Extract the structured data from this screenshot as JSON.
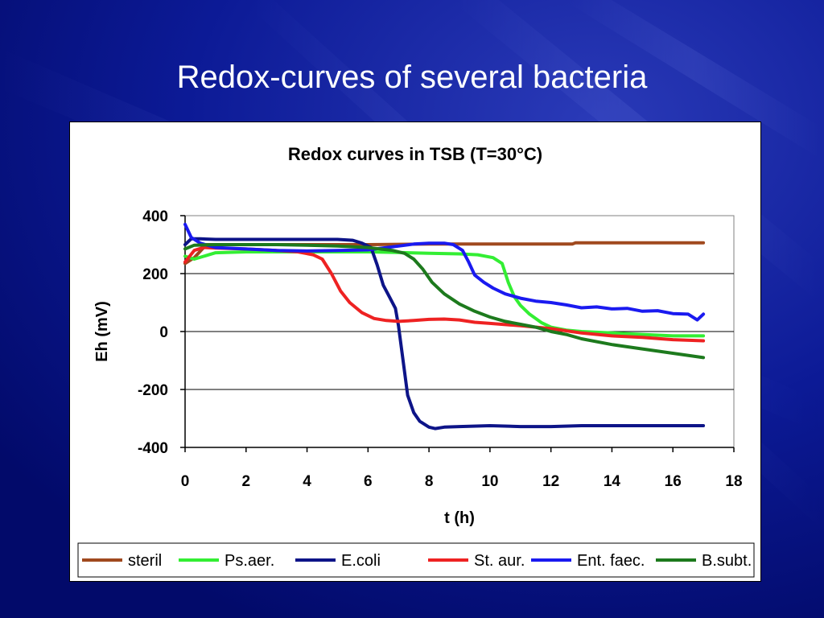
{
  "slide": {
    "title": "Redox-curves of several bacteria"
  },
  "colors": {
    "background": "#06118a",
    "frame": "#ffffff"
  },
  "chart_data": {
    "type": "line",
    "title": "Redox curves in TSB  (T=30°C)",
    "xlabel": "t (h)",
    "ylabel": "Eh (mV)",
    "xlim": [
      0,
      18
    ],
    "ylim": [
      -400,
      400
    ],
    "xticks": [
      0,
      2,
      4,
      6,
      8,
      10,
      12,
      14,
      16,
      18
    ],
    "yticks": [
      -400,
      -200,
      0,
      200,
      400
    ],
    "grid": "horizontal",
    "legend_position": "bottom",
    "series": [
      {
        "name": "steril",
        "color": "#a0491e",
        "points": [
          [
            0,
            235
          ],
          [
            0.3,
            255
          ],
          [
            0.7,
            300
          ],
          [
            2,
            300
          ],
          [
            4,
            300
          ],
          [
            6,
            300
          ],
          [
            8,
            302
          ],
          [
            10,
            302
          ],
          [
            12.7,
            302
          ],
          [
            12.8,
            306
          ],
          [
            14,
            306
          ],
          [
            16,
            306
          ],
          [
            17,
            306
          ]
        ]
      },
      {
        "name": "Ps.aer.",
        "color": "#33ee33",
        "points": [
          [
            0,
            260
          ],
          [
            0.3,
            250
          ],
          [
            1,
            272
          ],
          [
            2,
            275
          ],
          [
            4,
            275
          ],
          [
            6,
            275
          ],
          [
            7,
            273
          ],
          [
            8,
            270
          ],
          [
            9,
            268
          ],
          [
            9.6,
            265
          ],
          [
            10.1,
            255
          ],
          [
            10.4,
            235
          ],
          [
            10.6,
            170
          ],
          [
            10.8,
            120
          ],
          [
            11,
            90
          ],
          [
            11.3,
            60
          ],
          [
            11.7,
            30
          ],
          [
            12,
            15
          ],
          [
            12.5,
            5
          ],
          [
            13,
            0
          ],
          [
            14,
            -5
          ],
          [
            15,
            -10
          ],
          [
            16,
            -15
          ],
          [
            17,
            -15
          ]
        ]
      },
      {
        "name": "E.coli",
        "color": "#0d1488",
        "points": [
          [
            0,
            300
          ],
          [
            0.2,
            320
          ],
          [
            0.5,
            320
          ],
          [
            1,
            318
          ],
          [
            2,
            318
          ],
          [
            3,
            318
          ],
          [
            4,
            318
          ],
          [
            5,
            318
          ],
          [
            5.5,
            315
          ],
          [
            5.8,
            305
          ],
          [
            6.1,
            290
          ],
          [
            6.3,
            230
          ],
          [
            6.5,
            160
          ],
          [
            6.7,
            120
          ],
          [
            6.9,
            80
          ],
          [
            7.0,
            20
          ],
          [
            7.1,
            -60
          ],
          [
            7.2,
            -140
          ],
          [
            7.3,
            -220
          ],
          [
            7.5,
            -280
          ],
          [
            7.7,
            -310
          ],
          [
            8.0,
            -330
          ],
          [
            8.2,
            -335
          ],
          [
            8.5,
            -330
          ],
          [
            9,
            -328
          ],
          [
            10,
            -325
          ],
          [
            11,
            -328
          ],
          [
            12,
            -328
          ],
          [
            13,
            -325
          ],
          [
            14,
            -325
          ],
          [
            15,
            -325
          ],
          [
            16,
            -325
          ],
          [
            17,
            -325
          ]
        ]
      },
      {
        "name": "St. aur.",
        "color": "#ee2222",
        "points": [
          [
            0,
            240
          ],
          [
            0.3,
            280
          ],
          [
            0.6,
            290
          ],
          [
            1,
            288
          ],
          [
            2,
            285
          ],
          [
            3,
            280
          ],
          [
            3.7,
            275
          ],
          [
            4.2,
            265
          ],
          [
            4.5,
            250
          ],
          [
            4.8,
            200
          ],
          [
            5.1,
            140
          ],
          [
            5.4,
            100
          ],
          [
            5.8,
            65
          ],
          [
            6.2,
            45
          ],
          [
            6.6,
            38
          ],
          [
            7,
            35
          ],
          [
            7.5,
            38
          ],
          [
            8,
            42
          ],
          [
            8.5,
            43
          ],
          [
            9,
            40
          ],
          [
            9.5,
            32
          ],
          [
            10,
            28
          ],
          [
            11,
            20
          ],
          [
            12,
            10
          ],
          [
            13,
            -5
          ],
          [
            14,
            -15
          ],
          [
            15,
            -20
          ],
          [
            16,
            -28
          ],
          [
            17,
            -32
          ]
        ]
      },
      {
        "name": "Ent. faec.",
        "color": "#1a1af0",
        "points": [
          [
            0,
            370
          ],
          [
            0.2,
            325
          ],
          [
            0.5,
            305
          ],
          [
            1,
            290
          ],
          [
            2,
            285
          ],
          [
            3,
            280
          ],
          [
            4,
            278
          ],
          [
            5,
            280
          ],
          [
            6,
            282
          ],
          [
            7,
            295
          ],
          [
            7.5,
            302
          ],
          [
            8,
            305
          ],
          [
            8.5,
            305
          ],
          [
            8.8,
            300
          ],
          [
            9.1,
            280
          ],
          [
            9.3,
            240
          ],
          [
            9.5,
            195
          ],
          [
            9.8,
            170
          ],
          [
            10.1,
            150
          ],
          [
            10.5,
            130
          ],
          [
            11,
            115
          ],
          [
            11.5,
            105
          ],
          [
            12,
            100
          ],
          [
            12.5,
            92
          ],
          [
            13,
            82
          ],
          [
            13.5,
            85
          ],
          [
            14,
            78
          ],
          [
            14.5,
            80
          ],
          [
            15,
            70
          ],
          [
            15.5,
            72
          ],
          [
            16,
            62
          ],
          [
            16.5,
            60
          ],
          [
            16.8,
            40
          ],
          [
            17,
            60
          ]
        ]
      },
      {
        "name": "B.subt.",
        "color": "#1d7a1d",
        "points": [
          [
            0,
            285
          ],
          [
            0.3,
            298
          ],
          [
            1,
            300
          ],
          [
            2,
            300
          ],
          [
            3,
            300
          ],
          [
            4,
            298
          ],
          [
            5,
            295
          ],
          [
            6,
            290
          ],
          [
            6.8,
            280
          ],
          [
            7.2,
            270
          ],
          [
            7.5,
            250
          ],
          [
            7.8,
            215
          ],
          [
            8.1,
            170
          ],
          [
            8.5,
            130
          ],
          [
            9,
            95
          ],
          [
            9.5,
            70
          ],
          [
            10,
            50
          ],
          [
            10.5,
            35
          ],
          [
            11,
            25
          ],
          [
            11.5,
            15
          ],
          [
            12,
            0
          ],
          [
            12.5,
            -10
          ],
          [
            13,
            -25
          ],
          [
            14,
            -45
          ],
          [
            15,
            -60
          ],
          [
            16,
            -75
          ],
          [
            17,
            -90
          ]
        ]
      }
    ]
  }
}
